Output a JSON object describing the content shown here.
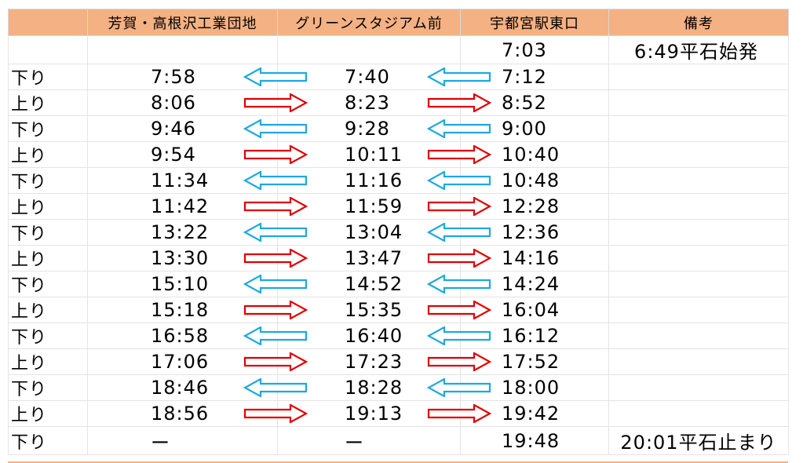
{
  "headers": [
    "",
    "芳賀・高根沢工業団地",
    "グリーンスタジアム前",
    "宇都宮駅東口",
    "備考"
  ],
  "first_row": {
    "direction": "",
    "haga": "",
    "green": "",
    "utsunomiya": "7:03",
    "note": "6:49平石始発"
  },
  "rows": [
    {
      "direction": "下り",
      "haga": "7:58",
      "green": "7:40",
      "utsunomiya": "7:12",
      "dir": "down"
    },
    {
      "direction": "上り",
      "haga": "8:06",
      "green": "8:23",
      "utsunomiya": "8:52",
      "dir": "up"
    },
    {
      "direction": "下り",
      "haga": "9:46",
      "green": "9:28",
      "utsunomiya": "9:00",
      "dir": "down"
    },
    {
      "direction": "上り",
      "haga": "9:54",
      "green": "10:11",
      "utsunomiya": "10:40",
      "dir": "up"
    },
    {
      "direction": "下り",
      "haga": "11:34",
      "green": "11:16",
      "utsunomiya": "10:48",
      "dir": "down"
    },
    {
      "direction": "上り",
      "haga": "11:42",
      "green": "11:59",
      "utsunomiya": "12:28",
      "dir": "up"
    },
    {
      "direction": "下り",
      "haga": "13:22",
      "green": "13:04",
      "utsunomiya": "12:36",
      "dir": "down"
    },
    {
      "direction": "上り",
      "haga": "13:30",
      "green": "13:47",
      "utsunomiya": "14:16",
      "dir": "up"
    },
    {
      "direction": "下り",
      "haga": "15:10",
      "green": "14:52",
      "utsunomiya": "14:24",
      "dir": "down"
    },
    {
      "direction": "上り",
      "haga": "15:18",
      "green": "15:35",
      "utsunomiya": "16:04",
      "dir": "up"
    },
    {
      "direction": "下り",
      "haga": "16:58",
      "green": "16:40",
      "utsunomiya": "16:12",
      "dir": "down"
    },
    {
      "direction": "上り",
      "haga": "17:06",
      "green": "17:23",
      "utsunomiya": "17:52",
      "dir": "up"
    },
    {
      "direction": "下り",
      "haga": "18:46",
      "green": "18:28",
      "utsunomiya": "18:00",
      "dir": "down"
    },
    {
      "direction": "上り",
      "haga": "18:56",
      "green": "19:13",
      "utsunomiya": "19:42",
      "dir": "up"
    }
  ],
  "last_row": {
    "direction": "下り",
    "haga": "ー",
    "green": "ー",
    "utsunomiya": "19:48",
    "note": "20:01平石止まり"
  },
  "colors": {
    "header_bg": "#f4b183",
    "up_arrow": "#e00000",
    "down_arrow": "#1fa8e0"
  }
}
